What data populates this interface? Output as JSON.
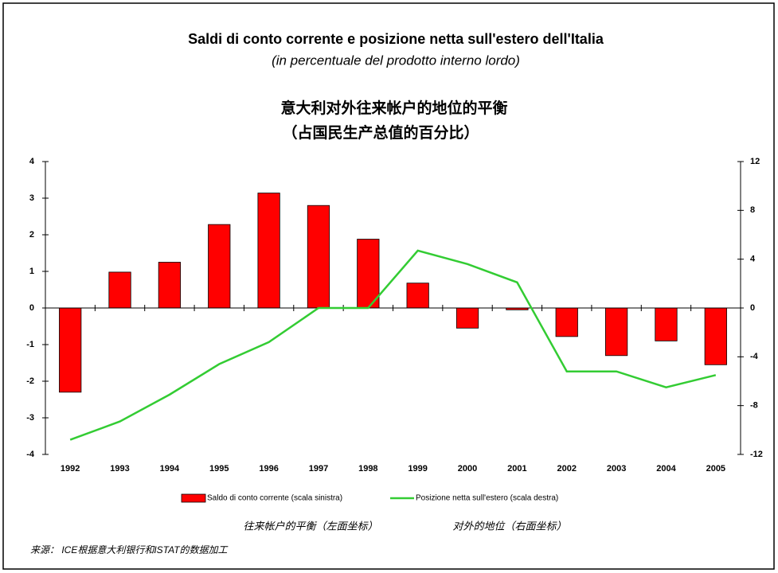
{
  "chart_data": {
    "type": "bar_line",
    "title": "Saldi di conto corrente  e posizione netta sull'estero dell'Italia",
    "subtitle": "(in percentuale del prodotto interno lordo)",
    "title_cn": "意大利对外往来帐户的地位的平衡",
    "subtitle_cn": "（占国民生产总值的百分比）",
    "categories": [
      "1992",
      "1993",
      "1994",
      "1995",
      "1996",
      "1997",
      "1998",
      "1999",
      "2000",
      "2001",
      "2002",
      "2003",
      "2004",
      "2005"
    ],
    "series": [
      {
        "name": "Saldo di conto corrente (scala sinistra)",
        "type": "bar",
        "color": "#ff0000",
        "values": [
          -2.3,
          0.98,
          1.25,
          2.28,
          3.14,
          2.8,
          1.88,
          0.68,
          -0.55,
          -0.05,
          -0.78,
          -1.3,
          -0.9,
          -1.55
        ]
      },
      {
        "name": "Posizione netta sull'estero (scala destra)",
        "type": "line",
        "color": "#33cc33",
        "axis": "y2",
        "values": [
          -10.8,
          -9.3,
          -7.1,
          -4.6,
          -2.8,
          0,
          0,
          4.7,
          3.6,
          2.1,
          -5.2,
          -5.2,
          -6.5,
          -5.5
        ]
      }
    ],
    "ylim": [
      -4,
      4
    ],
    "yticks": [
      -4,
      -3,
      -2,
      -1,
      0,
      1,
      2,
      3,
      4
    ],
    "y2lim": [
      -12,
      12
    ],
    "y2ticks": [
      -12,
      -8,
      -4,
      0,
      4,
      8,
      12
    ],
    "legend_cn": [
      "往来帐户的平衡（左面坐标）",
      "对外的地位（右面坐标）"
    ],
    "source": "来源： ICE根据意大利银行和ISTAT的数据加工"
  }
}
